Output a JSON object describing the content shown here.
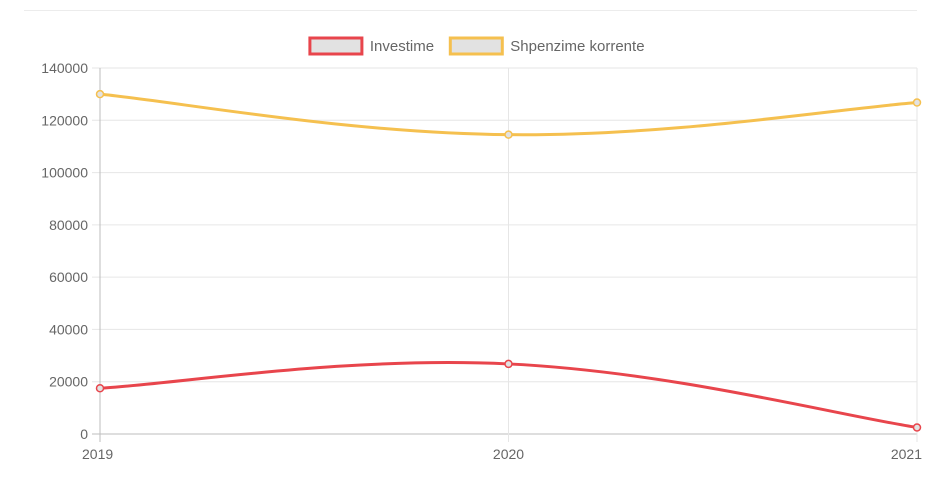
{
  "chart_data": {
    "type": "line",
    "title": "",
    "xlabel": "",
    "ylabel": "",
    "categories": [
      "2019",
      "2020",
      "2021"
    ],
    "ylim": [
      0,
      140000
    ],
    "y_ticks": [
      0,
      20000,
      40000,
      60000,
      80000,
      100000,
      120000,
      140000
    ],
    "y_tick_labels": [
      "0",
      "20000",
      "40000",
      "60000",
      "80000",
      "100000",
      "120000",
      "140000"
    ],
    "grid": true,
    "legend_position": "top",
    "smooth": true,
    "series": [
      {
        "name": "Investime",
        "values": [
          17500,
          26800,
          2500
        ],
        "color": "#e8454c"
      },
      {
        "name": "Shpenzime korrente",
        "values": [
          130000,
          114500,
          126800
        ],
        "color": "#f5c04f"
      }
    ],
    "legend_fill_color": "#e2e2e2",
    "grid_color": "#e6e6e6",
    "axis_text_color": "#666666"
  }
}
